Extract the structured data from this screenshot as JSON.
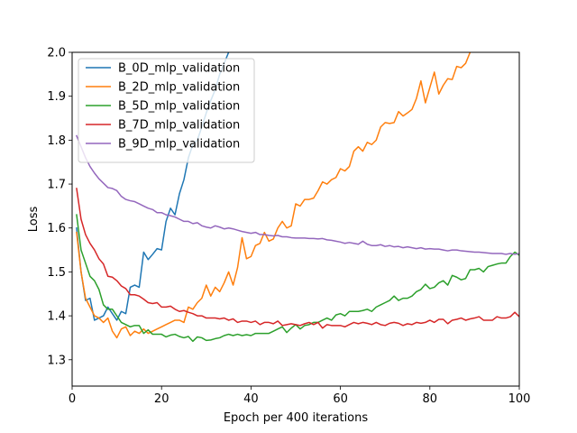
{
  "chart_data": {
    "type": "line",
    "title": "",
    "xlabel": "Epoch per 400 iterations",
    "ylabel": "Loss",
    "xlim": [
      0,
      100
    ],
    "ylim": [
      1.24,
      2.0
    ],
    "xticks": [
      0,
      20,
      40,
      60,
      80,
      100
    ],
    "yticks": [
      1.3,
      1.4,
      1.5,
      1.6,
      1.7,
      1.8,
      1.9,
      2.0
    ],
    "grid": false,
    "legend_position": "upper-left",
    "series": [
      {
        "name": "B_0D_mlp_validation",
        "color": "#1f77b4",
        "x": [
          1,
          2,
          3,
          4,
          5,
          6,
          7,
          8,
          9,
          10,
          11,
          12,
          13,
          14,
          15,
          16,
          17,
          18,
          19,
          20,
          21,
          22,
          23,
          24,
          25,
          26,
          27,
          28,
          29,
          30,
          31,
          32,
          33,
          34,
          35,
          36
        ],
        "y": [
          1.6,
          1.5,
          1.435,
          1.44,
          1.39,
          1.395,
          1.4,
          1.42,
          1.405,
          1.39,
          1.41,
          1.405,
          1.465,
          1.47,
          1.465,
          1.545,
          1.528,
          1.54,
          1.553,
          1.55,
          1.615,
          1.645,
          1.63,
          1.678,
          1.71,
          1.76,
          1.79,
          1.8,
          1.83,
          1.862,
          1.89,
          1.915,
          1.95,
          1.975,
          2.0,
          2.02
        ]
      },
      {
        "name": "B_2D_mlp_validation",
        "color": "#ff7f0e",
        "x": [
          1,
          2,
          3,
          4,
          5,
          6,
          7,
          8,
          9,
          10,
          11,
          12,
          13,
          14,
          15,
          16,
          17,
          18,
          19,
          20,
          21,
          22,
          23,
          24,
          25,
          26,
          27,
          28,
          29,
          30,
          31,
          32,
          33,
          34,
          35,
          36,
          37,
          38,
          39,
          40,
          41,
          42,
          43,
          44,
          45,
          46,
          47,
          48,
          49,
          50,
          51,
          52,
          53,
          54,
          55,
          56,
          57,
          58,
          59,
          60,
          61,
          62,
          63,
          64,
          65,
          66,
          67,
          68,
          69,
          70,
          71,
          72,
          73,
          74,
          75,
          76,
          77,
          78,
          79,
          80,
          81,
          82,
          83,
          84,
          85,
          86,
          87,
          88,
          89
        ],
        "y": [
          1.59,
          1.5,
          1.44,
          1.42,
          1.4,
          1.395,
          1.385,
          1.395,
          1.365,
          1.35,
          1.37,
          1.375,
          1.355,
          1.365,
          1.36,
          1.37,
          1.36,
          1.365,
          1.37,
          1.375,
          1.38,
          1.385,
          1.39,
          1.39,
          1.385,
          1.42,
          1.415,
          1.43,
          1.44,
          1.47,
          1.445,
          1.465,
          1.455,
          1.475,
          1.5,
          1.47,
          1.51,
          1.578,
          1.53,
          1.535,
          1.56,
          1.565,
          1.59,
          1.57,
          1.575,
          1.6,
          1.615,
          1.6,
          1.605,
          1.655,
          1.65,
          1.665,
          1.665,
          1.668,
          1.685,
          1.705,
          1.7,
          1.71,
          1.715,
          1.735,
          1.73,
          1.74,
          1.775,
          1.785,
          1.775,
          1.795,
          1.79,
          1.8,
          1.83,
          1.84,
          1.838,
          1.84,
          1.865,
          1.855,
          1.862,
          1.87,
          1.895,
          1.935,
          1.885,
          1.92,
          1.955,
          1.905,
          1.925,
          1.94,
          1.938,
          1.968,
          1.965,
          1.975,
          2.0
        ]
      },
      {
        "name": "B_5D_mlp_validation",
        "color": "#2ca02c",
        "x": [
          1,
          2,
          3,
          4,
          5,
          6,
          7,
          8,
          9,
          10,
          11,
          12,
          13,
          14,
          15,
          16,
          17,
          18,
          19,
          20,
          21,
          22,
          23,
          24,
          25,
          26,
          27,
          28,
          29,
          30,
          31,
          32,
          33,
          34,
          35,
          36,
          37,
          38,
          39,
          40,
          41,
          42,
          43,
          44,
          45,
          46,
          47,
          48,
          49,
          50,
          51,
          52,
          53,
          54,
          55,
          56,
          57,
          58,
          59,
          60,
          61,
          62,
          63,
          64,
          65,
          66,
          67,
          68,
          69,
          70,
          71,
          72,
          73,
          74,
          75,
          76,
          77,
          78,
          79,
          80,
          81,
          82,
          83,
          84,
          85,
          86,
          87,
          88,
          89,
          90,
          91,
          92,
          93,
          94,
          95,
          96,
          97,
          98,
          99,
          100
        ],
        "y": [
          1.63,
          1.55,
          1.52,
          1.49,
          1.48,
          1.46,
          1.425,
          1.415,
          1.415,
          1.4,
          1.385,
          1.38,
          1.375,
          1.378,
          1.378,
          1.36,
          1.368,
          1.358,
          1.358,
          1.358,
          1.352,
          1.356,
          1.358,
          1.353,
          1.35,
          1.353,
          1.342,
          1.352,
          1.35,
          1.344,
          1.345,
          1.348,
          1.35,
          1.355,
          1.358,
          1.355,
          1.358,
          1.355,
          1.357,
          1.355,
          1.36,
          1.36,
          1.36,
          1.36,
          1.365,
          1.37,
          1.375,
          1.362,
          1.372,
          1.38,
          1.37,
          1.378,
          1.38,
          1.385,
          1.385,
          1.39,
          1.395,
          1.39,
          1.402,
          1.405,
          1.4,
          1.41,
          1.41,
          1.41,
          1.412,
          1.415,
          1.41,
          1.42,
          1.425,
          1.43,
          1.435,
          1.445,
          1.435,
          1.44,
          1.44,
          1.445,
          1.455,
          1.46,
          1.472,
          1.462,
          1.465,
          1.475,
          1.48,
          1.47,
          1.492,
          1.488,
          1.482,
          1.485,
          1.505,
          1.505,
          1.508,
          1.5,
          1.512,
          1.515,
          1.518,
          1.52,
          1.52,
          1.535,
          1.545,
          1.538
        ]
      },
      {
        "name": "B_7D_mlp_validation",
        "color": "#d62728",
        "x": [
          1,
          2,
          3,
          4,
          5,
          6,
          7,
          8,
          9,
          10,
          11,
          12,
          13,
          14,
          15,
          16,
          17,
          18,
          19,
          20,
          21,
          22,
          23,
          24,
          25,
          26,
          27,
          28,
          29,
          30,
          31,
          32,
          33,
          34,
          35,
          36,
          37,
          38,
          39,
          40,
          41,
          42,
          43,
          44,
          45,
          46,
          47,
          48,
          49,
          50,
          51,
          52,
          53,
          54,
          55,
          56,
          57,
          58,
          59,
          60,
          61,
          62,
          63,
          64,
          65,
          66,
          67,
          68,
          69,
          70,
          71,
          72,
          73,
          74,
          75,
          76,
          77,
          78,
          79,
          80,
          81,
          82,
          83,
          84,
          85,
          86,
          87,
          88,
          89,
          90,
          91,
          92,
          93,
          94,
          95,
          96,
          97,
          98,
          99,
          100
        ],
        "y": [
          1.69,
          1.62,
          1.585,
          1.565,
          1.55,
          1.53,
          1.518,
          1.49,
          1.488,
          1.48,
          1.468,
          1.462,
          1.448,
          1.448,
          1.445,
          1.438,
          1.43,
          1.428,
          1.43,
          1.42,
          1.42,
          1.422,
          1.415,
          1.41,
          1.412,
          1.408,
          1.405,
          1.4,
          1.4,
          1.395,
          1.395,
          1.395,
          1.393,
          1.395,
          1.39,
          1.393,
          1.385,
          1.388,
          1.388,
          1.385,
          1.388,
          1.38,
          1.385,
          1.385,
          1.382,
          1.388,
          1.378,
          1.38,
          1.382,
          1.38,
          1.378,
          1.382,
          1.385,
          1.38,
          1.385,
          1.372,
          1.38,
          1.378,
          1.378,
          1.378,
          1.375,
          1.38,
          1.385,
          1.382,
          1.385,
          1.383,
          1.38,
          1.385,
          1.38,
          1.378,
          1.383,
          1.385,
          1.383,
          1.378,
          1.382,
          1.38,
          1.385,
          1.383,
          1.385,
          1.39,
          1.385,
          1.392,
          1.392,
          1.382,
          1.39,
          1.392,
          1.395,
          1.39,
          1.393,
          1.395,
          1.398,
          1.39,
          1.39,
          1.39,
          1.398,
          1.395,
          1.395,
          1.398,
          1.408,
          1.398
        ]
      },
      {
        "name": "B_9D_mlp_validation",
        "color": "#9467bd",
        "x": [
          1,
          2,
          3,
          4,
          5,
          6,
          7,
          8,
          9,
          10,
          11,
          12,
          13,
          14,
          15,
          16,
          17,
          18,
          19,
          20,
          21,
          22,
          23,
          24,
          25,
          26,
          27,
          28,
          29,
          30,
          31,
          32,
          33,
          34,
          35,
          36,
          37,
          38,
          39,
          40,
          41,
          42,
          43,
          44,
          45,
          46,
          47,
          48,
          49,
          50,
          51,
          52,
          53,
          54,
          55,
          56,
          57,
          58,
          59,
          60,
          61,
          62,
          63,
          64,
          65,
          66,
          67,
          68,
          69,
          70,
          71,
          72,
          73,
          74,
          75,
          76,
          77,
          78,
          79,
          80,
          81,
          82,
          83,
          84,
          85,
          86,
          87,
          88,
          89,
          90,
          91,
          92,
          93,
          94,
          95,
          96,
          97,
          98,
          99,
          100
        ],
        "y": [
          1.81,
          1.785,
          1.76,
          1.74,
          1.725,
          1.712,
          1.702,
          1.692,
          1.69,
          1.685,
          1.672,
          1.665,
          1.662,
          1.66,
          1.655,
          1.65,
          1.645,
          1.642,
          1.635,
          1.635,
          1.63,
          1.628,
          1.625,
          1.62,
          1.615,
          1.615,
          1.61,
          1.612,
          1.605,
          1.602,
          1.6,
          1.605,
          1.602,
          1.598,
          1.6,
          1.598,
          1.595,
          1.592,
          1.59,
          1.588,
          1.59,
          1.585,
          1.585,
          1.583,
          1.582,
          1.583,
          1.58,
          1.58,
          1.578,
          1.577,
          1.577,
          1.577,
          1.576,
          1.576,
          1.575,
          1.576,
          1.573,
          1.572,
          1.57,
          1.568,
          1.565,
          1.567,
          1.565,
          1.563,
          1.57,
          1.563,
          1.56,
          1.56,
          1.562,
          1.558,
          1.56,
          1.557,
          1.558,
          1.555,
          1.557,
          1.555,
          1.553,
          1.555,
          1.552,
          1.553,
          1.552,
          1.552,
          1.55,
          1.548,
          1.55,
          1.55,
          1.548,
          1.547,
          1.546,
          1.545,
          1.545,
          1.544,
          1.543,
          1.542,
          1.542,
          1.542,
          1.54,
          1.542,
          1.54,
          1.542
        ]
      }
    ]
  }
}
